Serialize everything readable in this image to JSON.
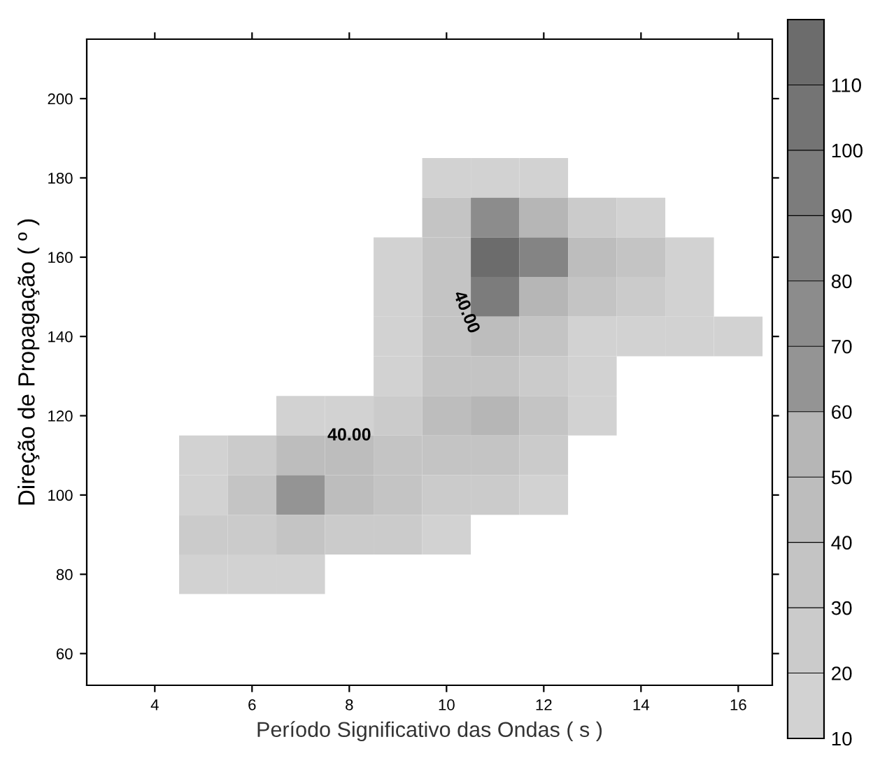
{
  "chart_data": {
    "type": "scatter",
    "xlabel": "Período Significativo das Ondas ( s )",
    "ylabel": "Direção de Propagação ( º )",
    "marker": "square",
    "x": [
      10,
      11,
      12,
      10,
      11,
      12,
      13,
      14,
      9,
      10,
      11,
      12,
      13,
      14,
      15,
      9,
      10,
      11,
      12,
      13,
      14,
      15,
      9,
      10,
      11,
      12,
      13,
      14,
      15,
      16,
      9,
      10,
      11,
      12,
      13,
      7,
      8,
      9,
      10,
      11,
      12,
      13,
      5,
      6,
      7,
      8,
      9,
      10,
      11,
      12,
      5,
      6,
      7,
      8,
      9,
      10,
      11,
      12,
      5,
      6,
      7,
      8,
      9,
      10,
      5,
      6,
      7
    ],
    "values": [
      180,
      180,
      180,
      170,
      170,
      170,
      170,
      170,
      160,
      160,
      160,
      160,
      160,
      160,
      160,
      150,
      150,
      150,
      150,
      150,
      150,
      150,
      140,
      140,
      140,
      140,
      140,
      140,
      140,
      140,
      130,
      130,
      130,
      130,
      130,
      120,
      120,
      120,
      120,
      120,
      120,
      120,
      110,
      110,
      110,
      110,
      110,
      110,
      110,
      110,
      100,
      100,
      100,
      100,
      100,
      100,
      100,
      100,
      90,
      90,
      90,
      90,
      90,
      90,
      80,
      80,
      80
    ],
    "cvalues": [
      15,
      15,
      15,
      35,
      75,
      55,
      25,
      15,
      15,
      35,
      115,
      85,
      45,
      35,
      15,
      15,
      35,
      95,
      55,
      35,
      25,
      15,
      15,
      35,
      45,
      35,
      15,
      15,
      15,
      15,
      15,
      35,
      35,
      25,
      15,
      15,
      15,
      25,
      45,
      55,
      35,
      15,
      15,
      25,
      45,
      45,
      35,
      35,
      35,
      25,
      15,
      35,
      65,
      45,
      35,
      25,
      25,
      15,
      25,
      25,
      35,
      25,
      25,
      15,
      15,
      15,
      15
    ],
    "xlim": [
      2.6,
      16.7
    ],
    "xticks": [
      4,
      6,
      8,
      10,
      12,
      14,
      16
    ],
    "ylim": [
      52,
      215
    ],
    "yticks": [
      60,
      80,
      100,
      120,
      140,
      160,
      180,
      200
    ],
    "clim": [
      10,
      120
    ],
    "cticks": [
      10,
      20,
      30,
      40,
      50,
      60,
      70,
      80,
      90,
      100,
      110
    ],
    "annotations": [
      "40.00",
      "40.00"
    ]
  }
}
